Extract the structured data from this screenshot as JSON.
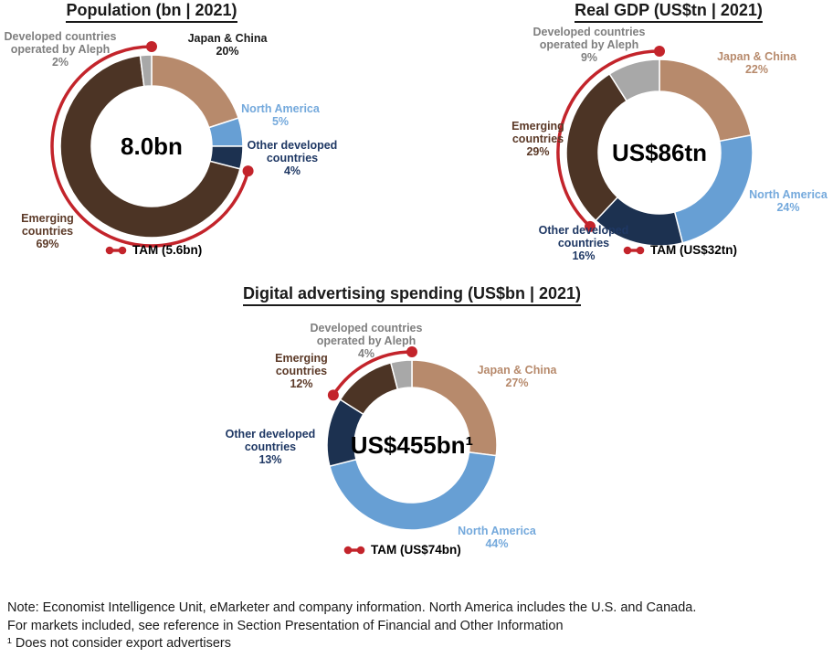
{
  "colors": {
    "tam_red": "#C3242B",
    "background": "#FFFFFF",
    "title_text": "#1A1A1A"
  },
  "chart_data": [
    {
      "type": "donut",
      "title": "Population (bn | 2021)",
      "center_label": "8.0bn",
      "segments": [
        {
          "label": "Japan & China",
          "pct": 20,
          "pct_text": "20%",
          "color": "#B78A6C",
          "label_color": "#1A1A1A"
        },
        {
          "label": "North America",
          "pct": 5,
          "pct_text": "5%",
          "color": "#679FD4",
          "label_color": "#74A9DC"
        },
        {
          "label": "Other developed countries",
          "pct": 4,
          "pct_text": "4%",
          "color": "#1C3150",
          "label_color": "#1F3864"
        },
        {
          "label": "Emerging countries",
          "pct": 69,
          "pct_text": "69%",
          "color": "#4C3425",
          "label_color": "#5C3A28"
        },
        {
          "label": "Developed countries operated by Aleph",
          "pct": 2,
          "pct_text": "2%",
          "color": "#A8A8A8",
          "label_color": "#7F7F7F"
        }
      ],
      "tam": {
        "label": "TAM (5.6bn)",
        "arc_from_pct": 29,
        "arc_to_pct": 100
      }
    },
    {
      "type": "donut",
      "title": "Real GDP (US$tn | 2021)",
      "center_label": "US$86tn",
      "segments": [
        {
          "label": "Japan & China",
          "pct": 22,
          "pct_text": "22%",
          "color": "#B78A6C",
          "label_color": "#B78A6C"
        },
        {
          "label": "North America",
          "pct": 24,
          "pct_text": "24%",
          "color": "#679FD4",
          "label_color": "#74A9DC"
        },
        {
          "label": "Other developed countries",
          "pct": 16,
          "pct_text": "16%",
          "color": "#1C3150",
          "label_color": "#1F3864"
        },
        {
          "label": "Emerging countries",
          "pct": 29,
          "pct_text": "29%",
          "color": "#4C3425",
          "label_color": "#5C3A28"
        },
        {
          "label": "Developed countries operated by Aleph",
          "pct": 9,
          "pct_text": "9%",
          "color": "#A8A8A8",
          "label_color": "#7F7F7F"
        }
      ],
      "tam": {
        "label": "TAM (US$32tn)",
        "arc_from_pct": 62,
        "arc_to_pct": 100
      }
    },
    {
      "type": "donut",
      "title": "Digital advertising spending (US$bn | 2021)",
      "center_label": "US$455bn¹",
      "segments": [
        {
          "label": "Japan & China",
          "pct": 27,
          "pct_text": "27%",
          "color": "#B78A6C",
          "label_color": "#B78A6C"
        },
        {
          "label": "North America",
          "pct": 44,
          "pct_text": "44%",
          "color": "#679FD4",
          "label_color": "#74A9DC"
        },
        {
          "label": "Other developed countries",
          "pct": 13,
          "pct_text": "13%",
          "color": "#1C3150",
          "label_color": "#1F3864"
        },
        {
          "label": "Emerging countries",
          "pct": 12,
          "pct_text": "12%",
          "color": "#4C3425",
          "label_color": "#5C3A28"
        },
        {
          "label": "Developed countries operated by Aleph",
          "pct": 4,
          "pct_text": "4%",
          "color": "#A8A8A8",
          "label_color": "#7F7F7F"
        }
      ],
      "tam": {
        "label": "TAM (US$74bn)",
        "arc_from_pct": 84,
        "arc_to_pct": 100
      }
    }
  ],
  "notes": {
    "lines": [
      "Note: Economist Intelligence Unit, eMarketer and company information. North America includes the U.S. and Canada.",
      "For markets included, see reference in Section Presentation of Financial and Other Information",
      "¹ Does not consider export advertisers"
    ]
  }
}
